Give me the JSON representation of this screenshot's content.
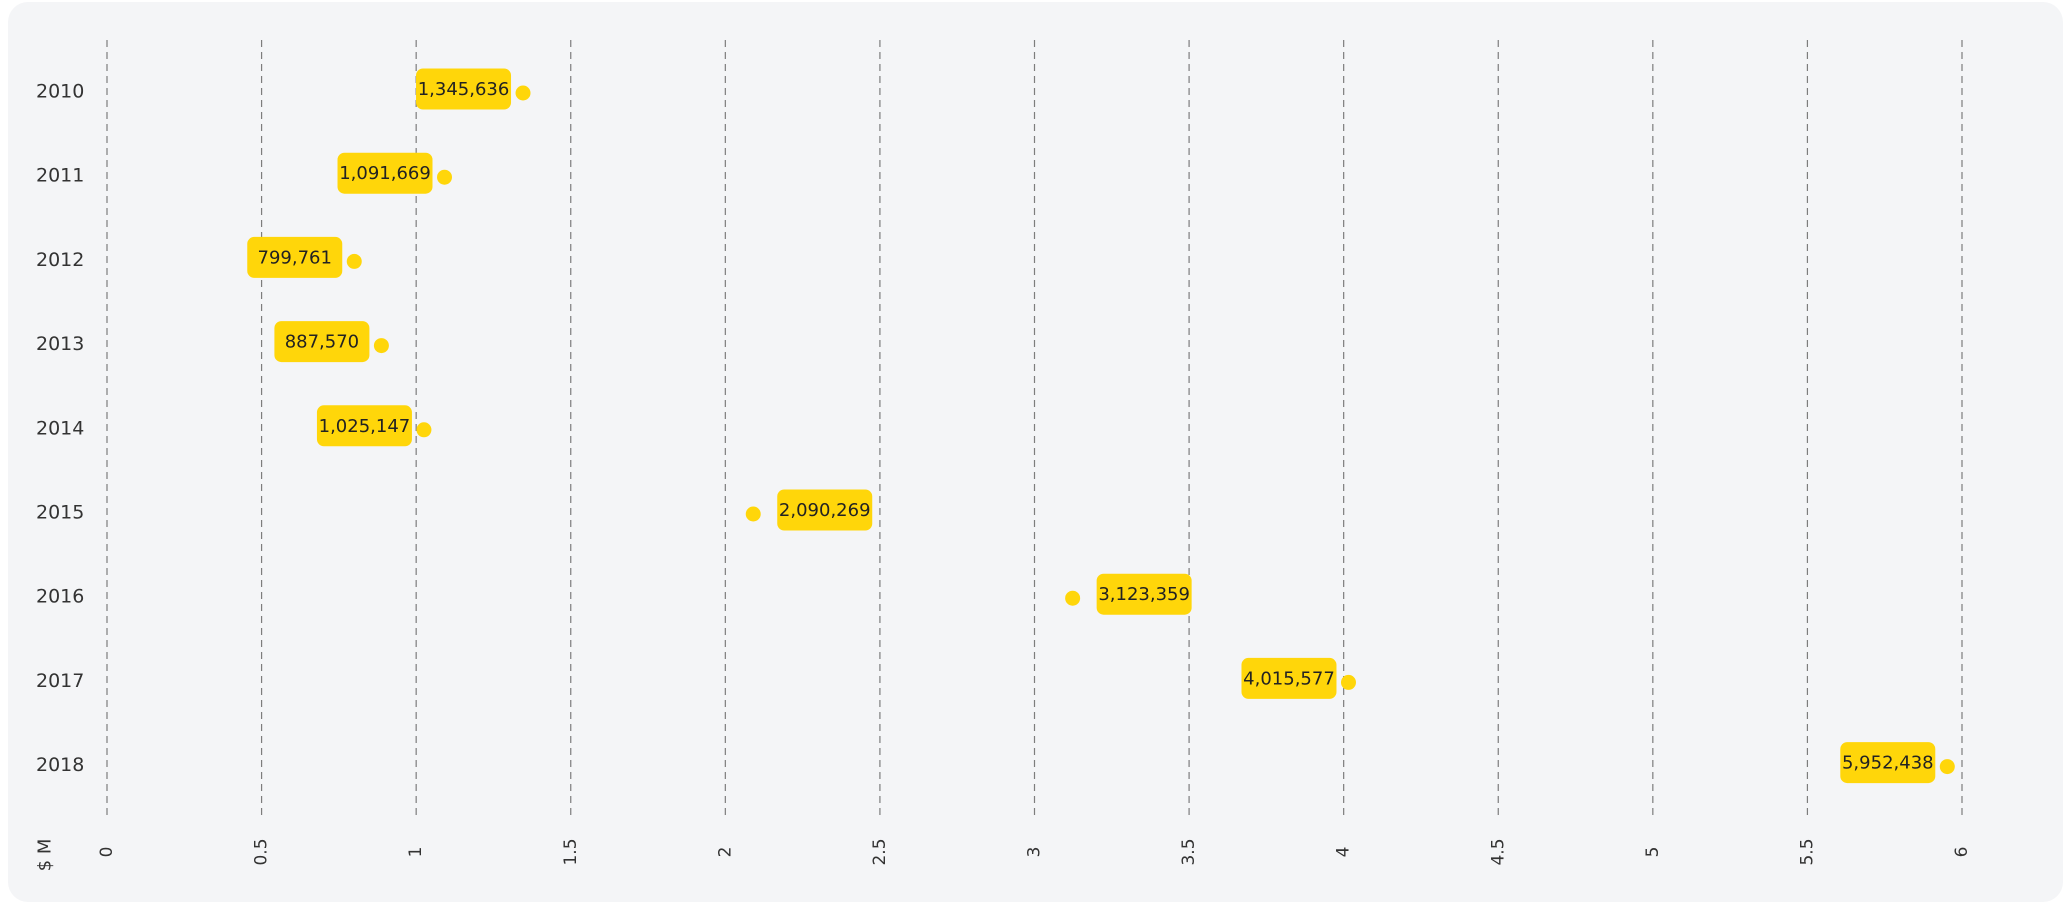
{
  "chart_data": {
    "type": "scatter",
    "title": "",
    "xlabel": "$ M",
    "ylabel": "",
    "xlim": [
      0,
      6
    ],
    "x_ticks": [
      "0",
      "0.5",
      "1",
      "1.5",
      "2",
      "2.5",
      "3",
      "3.5",
      "4",
      "4.5",
      "5",
      "5.5",
      "6"
    ],
    "categories": [
      "2010",
      "2011",
      "2012",
      "2013",
      "2014",
      "2015",
      "2016",
      "2017",
      "2018"
    ],
    "values": [
      1345636,
      1091669,
      799761,
      887570,
      1025147,
      2090269,
      3123359,
      4015577,
      5952438
    ],
    "value_labels": [
      "1,345,636",
      "1,091,669",
      "799,761",
      "887,570",
      "1,025,147",
      "2,090,269",
      "3,123,359",
      "4,015,577",
      "5,952,438"
    ],
    "grid": true,
    "colors": {
      "point": "#ffd60a",
      "label_bg": "#ffd60a",
      "grid": "#7d7d7d",
      "panel": "#f4f5f7"
    }
  }
}
